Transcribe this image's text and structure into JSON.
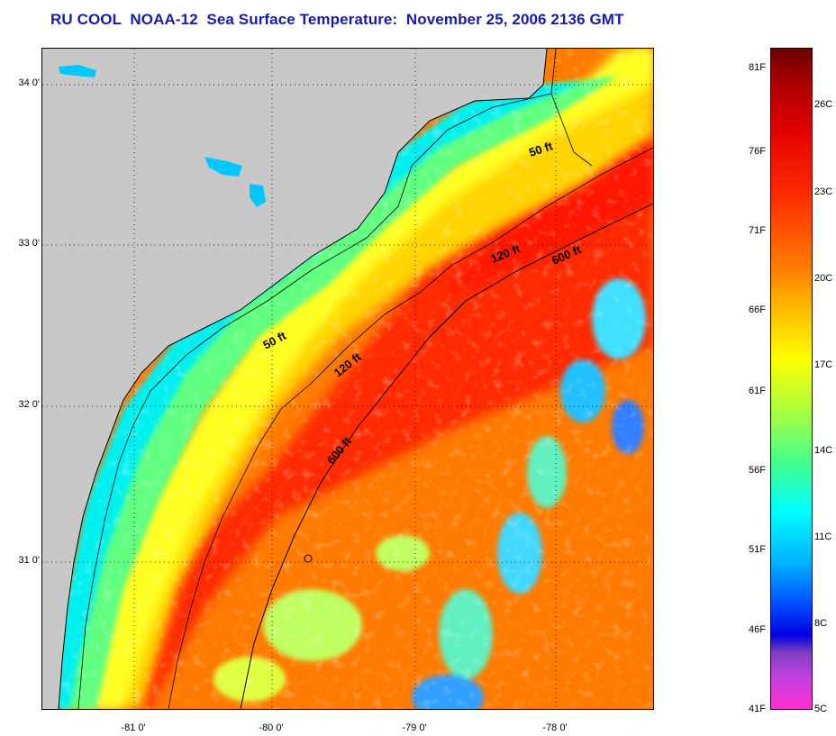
{
  "title": "RU COOL  NOAA-12  Sea Surface Temperature:  November 25, 2006 2136 GMT",
  "latitude_labels": [
    "34 0'",
    "33 0'",
    "32 0'",
    "31 0'"
  ],
  "longitude_labels": [
    "-81 0'",
    "-80 0'",
    "-79 0'",
    "-78 0'"
  ],
  "contour_labels": {
    "c50_north": "50 ft",
    "c120_north": "120 ft",
    "c600_north": "600 ft",
    "c50_south": "50 ft",
    "c120_south": "120 ft",
    "c600_south": "600 ft"
  },
  "colorbar": {
    "fahrenheit": [
      "81F",
      "76F",
      "71F",
      "66F",
      "61F",
      "56F",
      "51F",
      "46F",
      "41F"
    ],
    "celsius": [
      "26C",
      "23C",
      "20C",
      "17C",
      "14C",
      "11C",
      "8C",
      "5C"
    ]
  },
  "colors": {
    "title": "#1a1aa8",
    "land": "#c8c8c8"
  }
}
